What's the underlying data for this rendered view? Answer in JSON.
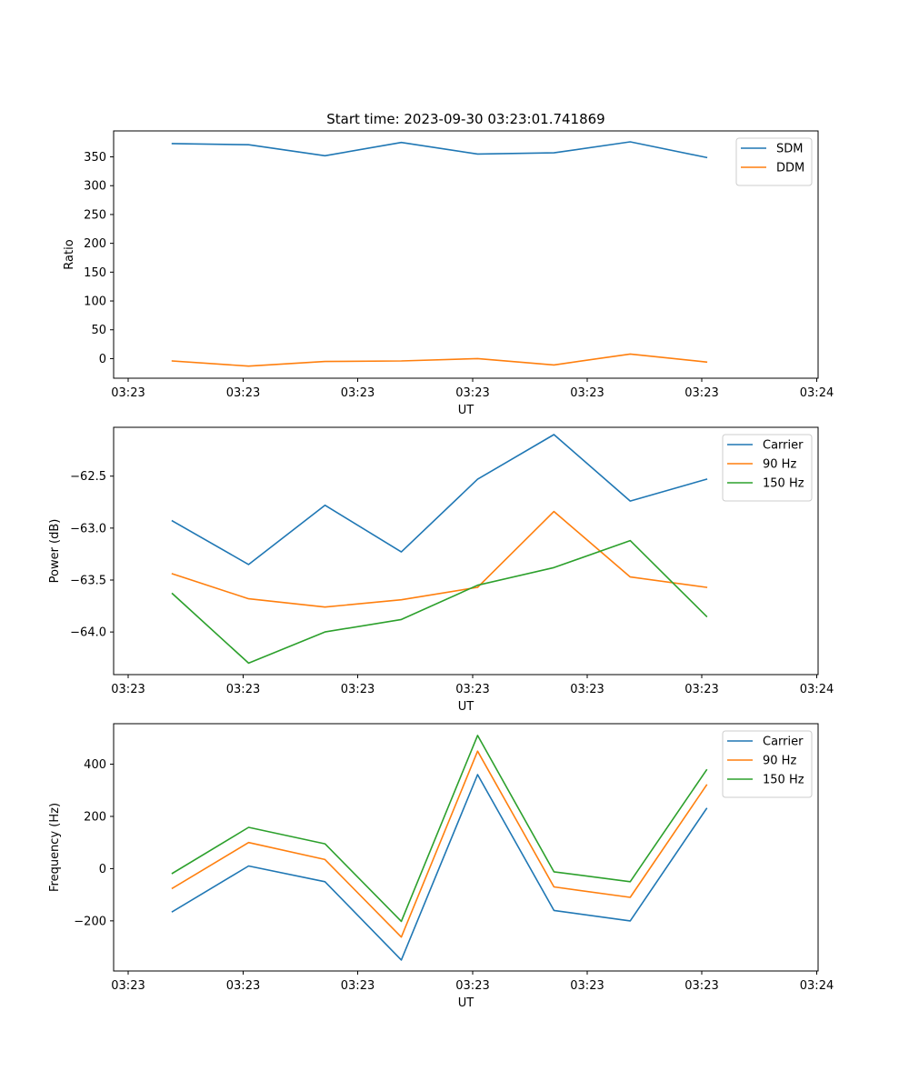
{
  "figure": {
    "title": "Start time: 2023-09-30 03:23:01.741869"
  },
  "chart_data": [
    {
      "type": "line",
      "xlabel": "UT",
      "ylabel": "Ratio",
      "x_ticks": [
        "03:23",
        "03:23",
        "03:23",
        "03:23",
        "03:23",
        "03:23",
        "03:24"
      ],
      "xlim": [
        0.0,
        6.0
      ],
      "ylim": [
        -34,
        395
      ],
      "y_ticks": [
        0,
        50,
        100,
        150,
        200,
        250,
        300,
        350
      ],
      "y_tick_labels": [
        "0",
        "50",
        "100",
        "150",
        "200",
        "250",
        "300",
        "350"
      ],
      "legend_position": "top-right",
      "x": [
        0.5,
        1.15,
        1.8,
        2.45,
        3.1,
        3.75,
        4.4,
        5.05
      ],
      "series": [
        {
          "name": "SDM",
          "color": "#1f77b4",
          "values": [
            373,
            371,
            352,
            375,
            355,
            357,
            376,
            349
          ]
        },
        {
          "name": "DDM",
          "color": "#ff7f0e",
          "values": [
            -4,
            -13,
            -5,
            -4,
            0,
            -11,
            8,
            -6
          ]
        }
      ]
    },
    {
      "type": "line",
      "xlabel": "UT",
      "ylabel": "Power (dB)",
      "x_ticks": [
        "03:23",
        "03:23",
        "03:23",
        "03:23",
        "03:23",
        "03:23",
        "03:24"
      ],
      "xlim": [
        0.0,
        6.0
      ],
      "ylim": [
        -64.41,
        -62.03
      ],
      "y_ticks": [
        -64.0,
        -63.5,
        -63.0,
        -62.5
      ],
      "y_tick_labels": [
        "−64.0",
        "−63.5",
        "−63.0",
        "−62.5"
      ],
      "legend_position": "top-right",
      "x": [
        0.5,
        1.15,
        1.8,
        2.45,
        3.1,
        3.75,
        4.4,
        5.05
      ],
      "series": [
        {
          "name": "Carrier",
          "color": "#1f77b4",
          "values": [
            -62.93,
            -63.35,
            -62.78,
            -63.23,
            -62.53,
            -62.1,
            -62.74,
            -62.53
          ]
        },
        {
          "name": "90 Hz",
          "color": "#ff7f0e",
          "values": [
            -63.44,
            -63.68,
            -63.76,
            -63.69,
            -63.57,
            -62.84,
            -63.47,
            -63.57
          ]
        },
        {
          "name": "150 Hz",
          "color": "#2ca02c",
          "values": [
            -63.63,
            -64.3,
            -64.0,
            -63.88,
            -63.55,
            -63.38,
            -63.12,
            -63.85
          ]
        }
      ]
    },
    {
      "type": "line",
      "xlabel": "UT",
      "ylabel": "Frequency (Hz)",
      "x_ticks": [
        "03:23",
        "03:23",
        "03:23",
        "03:23",
        "03:23",
        "03:23",
        "03:24"
      ],
      "xlim": [
        0.0,
        6.0
      ],
      "ylim": [
        -392,
        555
      ],
      "y_ticks": [
        -200,
        0,
        200,
        400
      ],
      "y_tick_labels": [
        "−200",
        "0",
        "200",
        "400"
      ],
      "legend_position": "top-right",
      "x": [
        0.5,
        1.15,
        1.8,
        2.45,
        3.1,
        3.75,
        4.4,
        5.05
      ],
      "series": [
        {
          "name": "Carrier",
          "color": "#1f77b4",
          "values": [
            -165,
            10,
            -50,
            -350,
            360,
            -160,
            -200,
            230
          ]
        },
        {
          "name": "90 Hz",
          "color": "#ff7f0e",
          "values": [
            -75,
            100,
            35,
            -262,
            450,
            -70,
            -110,
            320
          ]
        },
        {
          "name": "150 Hz",
          "color": "#2ca02c",
          "values": [
            -18,
            158,
            95,
            -202,
            510,
            -12,
            -50,
            378
          ]
        }
      ]
    }
  ]
}
